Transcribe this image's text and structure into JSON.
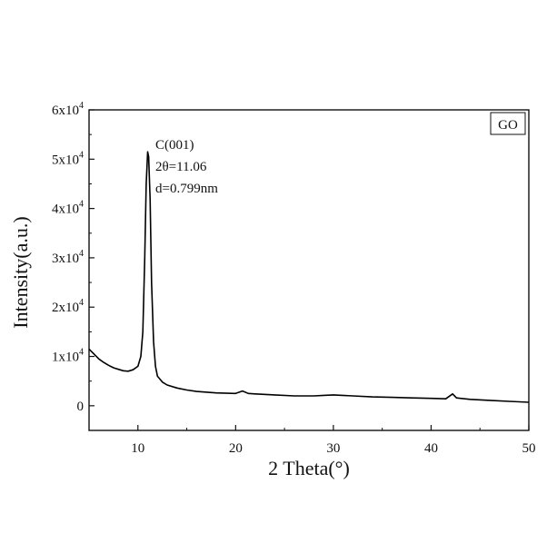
{
  "chart_data": {
    "type": "line",
    "title": "",
    "xlabel": "2 Theta(°)",
    "ylabel": "Intensity(a.u.)",
    "xlim": [
      5,
      50
    ],
    "ylim": [
      -5000,
      60000
    ],
    "x_ticks": [
      10,
      20,
      30,
      40,
      50
    ],
    "x_tick_labels": [
      "10",
      "20",
      "30",
      "40",
      "50"
    ],
    "y_ticks": [
      0,
      10000,
      20000,
      30000,
      40000,
      50000,
      60000
    ],
    "y_tick_labels": [
      {
        "base": "0",
        "exp": ""
      },
      {
        "base": "1x10",
        "exp": "4"
      },
      {
        "base": "2x10",
        "exp": "4"
      },
      {
        "base": "3x10",
        "exp": "4"
      },
      {
        "base": "4x10",
        "exp": "4"
      },
      {
        "base": "5x10",
        "exp": "4"
      },
      {
        "base": "6x10",
        "exp": "4"
      }
    ],
    "grid": false,
    "legend": {
      "position": "top-right",
      "label": "GO"
    },
    "annotation": [
      "C(001)",
      "2θ=11.06",
      "d=0.799nm"
    ],
    "series": [
      {
        "name": "GO",
        "color": "#000000",
        "points": [
          [
            5,
            11500
          ],
          [
            5.5,
            10500
          ],
          [
            6,
            9500
          ],
          [
            6.5,
            8800
          ],
          [
            7,
            8200
          ],
          [
            7.5,
            7700
          ],
          [
            8,
            7400
          ],
          [
            8.5,
            7100
          ],
          [
            9,
            7000
          ],
          [
            9.5,
            7300
          ],
          [
            10,
            8000
          ],
          [
            10.3,
            10000
          ],
          [
            10.5,
            15000
          ],
          [
            10.7,
            30000
          ],
          [
            10.85,
            45000
          ],
          [
            11.0,
            51500
          ],
          [
            11.1,
            50500
          ],
          [
            11.25,
            42000
          ],
          [
            11.4,
            25000
          ],
          [
            11.6,
            13000
          ],
          [
            11.8,
            8000
          ],
          [
            12,
            6000
          ],
          [
            12.5,
            4800
          ],
          [
            13,
            4200
          ],
          [
            14,
            3600
          ],
          [
            15,
            3200
          ],
          [
            16,
            2900
          ],
          [
            18,
            2600
          ],
          [
            20,
            2500
          ],
          [
            20.7,
            3000
          ],
          [
            21.3,
            2500
          ],
          [
            22,
            2400
          ],
          [
            24,
            2200
          ],
          [
            26,
            2000
          ],
          [
            28,
            2000
          ],
          [
            29,
            2100
          ],
          [
            30,
            2200
          ],
          [
            32,
            2000
          ],
          [
            34,
            1800
          ],
          [
            36,
            1700
          ],
          [
            38,
            1600
          ],
          [
            40,
            1500
          ],
          [
            41.5,
            1400
          ],
          [
            42.2,
            2400
          ],
          [
            42.6,
            1600
          ],
          [
            44,
            1300
          ],
          [
            46,
            1100
          ],
          [
            48,
            900
          ],
          [
            50,
            700
          ]
        ]
      }
    ]
  }
}
